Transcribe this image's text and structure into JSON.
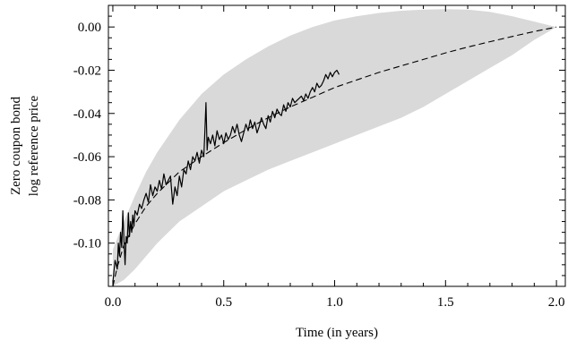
{
  "chart_data": {
    "type": "line",
    "title": "",
    "xlabel": "Time (in years)",
    "ylabel": [
      "Zero coupon bond",
      "log reference price"
    ],
    "xlim": [
      -0.02,
      2.04
    ],
    "ylim": [
      -0.12,
      0.01
    ],
    "x_ticks": [
      0.0,
      0.5,
      1.0,
      1.5,
      2.0
    ],
    "x_tick_labels": [
      "0.0",
      "0.5",
      "1.0",
      "1.5",
      "2.0"
    ],
    "y_ticks": [
      0.0,
      -0.02,
      -0.04,
      -0.06,
      -0.08,
      -0.1
    ],
    "y_tick_labels": [
      "0.00",
      "-0.02",
      "-0.04",
      "-0.06",
      "-0.08",
      "-0.10"
    ],
    "grid": false,
    "legend": "none",
    "colors": {
      "band": "#d9d9d9",
      "lines": "#000000"
    },
    "series": [
      {
        "type": "area",
        "role": "confidence band",
        "x": [
          0.0,
          0.05,
          0.1,
          0.15,
          0.2,
          0.3,
          0.4,
          0.5,
          0.6,
          0.7,
          0.8,
          0.9,
          1.0,
          1.1,
          1.2,
          1.3,
          1.4,
          1.5,
          1.6,
          1.7,
          1.8,
          1.9,
          2.0
        ],
        "upper": [
          -0.103,
          -0.09,
          -0.078,
          -0.067,
          -0.058,
          -0.043,
          -0.031,
          -0.022,
          -0.015,
          -0.009,
          -0.004,
          0.0,
          0.003,
          0.005,
          0.0065,
          0.0075,
          0.008,
          0.0082,
          0.008,
          0.007,
          0.005,
          0.0025,
          0.0
        ],
        "lower": [
          -0.12,
          -0.117,
          -0.112,
          -0.106,
          -0.1,
          -0.09,
          -0.083,
          -0.076,
          -0.071,
          -0.066,
          -0.062,
          -0.058,
          -0.054,
          -0.05,
          -0.046,
          -0.042,
          -0.037,
          -0.031,
          -0.025,
          -0.019,
          -0.013,
          -0.006,
          0.0
        ]
      },
      {
        "type": "line",
        "role": "expected path",
        "style": "dashed",
        "x": [
          0.0,
          0.02,
          0.05,
          0.1,
          0.15,
          0.2,
          0.25,
          0.3,
          0.4,
          0.5,
          0.6,
          0.7,
          0.8,
          0.9,
          1.0,
          1.1,
          1.2,
          1.3,
          1.4,
          1.5,
          1.6,
          1.7,
          1.8,
          1.9,
          2.0
        ],
        "y": [
          -0.12,
          -0.111,
          -0.101,
          -0.091,
          -0.083,
          -0.077,
          -0.072,
          -0.067,
          -0.06,
          -0.0535,
          -0.0475,
          -0.042,
          -0.037,
          -0.0325,
          -0.028,
          -0.0245,
          -0.021,
          -0.018,
          -0.015,
          -0.012,
          -0.0093,
          -0.0068,
          -0.0044,
          -0.0021,
          0.0
        ]
      },
      {
        "type": "line",
        "role": "observed price",
        "style": "solid",
        "x": [
          0.0,
          0.01,
          0.02,
          0.025,
          0.03,
          0.035,
          0.04,
          0.045,
          0.05,
          0.055,
          0.06,
          0.065,
          0.07,
          0.075,
          0.08,
          0.085,
          0.09,
          0.095,
          0.1,
          0.11,
          0.12,
          0.13,
          0.14,
          0.15,
          0.16,
          0.17,
          0.18,
          0.19,
          0.2,
          0.21,
          0.22,
          0.23,
          0.24,
          0.25,
          0.26,
          0.27,
          0.28,
          0.29,
          0.3,
          0.31,
          0.32,
          0.33,
          0.34,
          0.35,
          0.36,
          0.37,
          0.38,
          0.39,
          0.4,
          0.41,
          0.415,
          0.42,
          0.425,
          0.43,
          0.44,
          0.45,
          0.46,
          0.47,
          0.48,
          0.49,
          0.5,
          0.51,
          0.52,
          0.53,
          0.54,
          0.55,
          0.56,
          0.57,
          0.58,
          0.59,
          0.6,
          0.61,
          0.62,
          0.63,
          0.64,
          0.65,
          0.66,
          0.67,
          0.68,
          0.69,
          0.7,
          0.71,
          0.72,
          0.73,
          0.74,
          0.75,
          0.76,
          0.77,
          0.78,
          0.79,
          0.8,
          0.81,
          0.82,
          0.83,
          0.84,
          0.85,
          0.86,
          0.87,
          0.88,
          0.89,
          0.9,
          0.91,
          0.92,
          0.93,
          0.94,
          0.95,
          0.96,
          0.97,
          0.98,
          0.99,
          1.0,
          1.01,
          1.02
        ],
        "y": [
          -0.118,
          -0.108,
          -0.112,
          -0.1,
          -0.106,
          -0.095,
          -0.102,
          -0.085,
          -0.098,
          -0.11,
          -0.097,
          -0.1,
          -0.086,
          -0.097,
          -0.09,
          -0.095,
          -0.087,
          -0.092,
          -0.085,
          -0.087,
          -0.082,
          -0.084,
          -0.08,
          -0.077,
          -0.081,
          -0.073,
          -0.078,
          -0.074,
          -0.076,
          -0.071,
          -0.075,
          -0.068,
          -0.073,
          -0.071,
          -0.069,
          -0.082,
          -0.074,
          -0.078,
          -0.069,
          -0.074,
          -0.066,
          -0.068,
          -0.062,
          -0.066,
          -0.06,
          -0.062,
          -0.058,
          -0.063,
          -0.057,
          -0.06,
          -0.048,
          -0.035,
          -0.057,
          -0.051,
          -0.054,
          -0.05,
          -0.055,
          -0.048,
          -0.052,
          -0.05,
          -0.054,
          -0.049,
          -0.052,
          -0.05,
          -0.046,
          -0.049,
          -0.045,
          -0.05,
          -0.053,
          -0.049,
          -0.045,
          -0.048,
          -0.043,
          -0.047,
          -0.044,
          -0.049,
          -0.046,
          -0.042,
          -0.045,
          -0.047,
          -0.041,
          -0.044,
          -0.039,
          -0.042,
          -0.038,
          -0.04,
          -0.041,
          -0.036,
          -0.039,
          -0.035,
          -0.037,
          -0.033,
          -0.035,
          -0.034,
          -0.033,
          -0.032,
          -0.034,
          -0.031,
          -0.033,
          -0.03,
          -0.028,
          -0.03,
          -0.026,
          -0.028,
          -0.027,
          -0.025,
          -0.022,
          -0.024,
          -0.021,
          -0.023,
          -0.021,
          -0.02,
          -0.022
        ]
      }
    ]
  }
}
